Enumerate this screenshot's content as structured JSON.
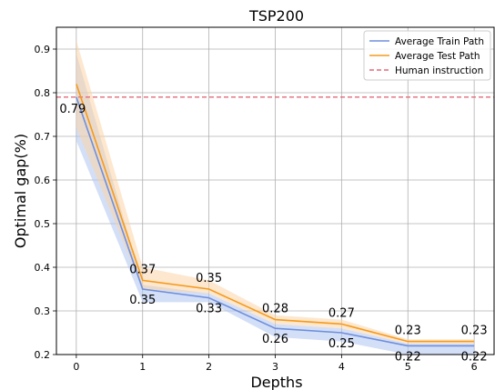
{
  "chart_data": {
    "type": "line",
    "title": "TSP200",
    "xlabel": "Depths",
    "ylabel": "Optimal gap(%)",
    "x": [
      0,
      1,
      2,
      3,
      4,
      5,
      6
    ],
    "x_ticks": [
      "0",
      "1",
      "2",
      "3",
      "4",
      "5",
      "6"
    ],
    "y_ticks": [
      "0.2",
      "0.3",
      "0.4",
      "0.5",
      "0.6",
      "0.7",
      "0.8",
      "0.9"
    ],
    "xlim": [
      -0.3,
      6.3
    ],
    "ylim": [
      0.2,
      0.95
    ],
    "grid": true,
    "legend_position": "top-right",
    "series": [
      {
        "name": "Average Train Path",
        "color": "#6f8fdc",
        "band_color": "#aec4f0",
        "values": [
          0.79,
          0.35,
          0.33,
          0.26,
          0.25,
          0.22,
          0.22
        ],
        "lower": [
          0.69,
          0.32,
          0.32,
          0.24,
          0.23,
          0.2,
          0.2
        ],
        "upper": [
          0.89,
          0.36,
          0.34,
          0.27,
          0.26,
          0.225,
          0.225
        ],
        "labels": [
          "0.79",
          "0.35",
          "0.33",
          "0.26",
          "0.25",
          "0.22",
          "0.22"
        ]
      },
      {
        "name": "Average Test Path",
        "color": "#f59a1b",
        "band_color": "#fbd3a6",
        "values": [
          0.82,
          0.37,
          0.35,
          0.28,
          0.27,
          0.23,
          0.23
        ],
        "lower": [
          0.72,
          0.35,
          0.34,
          0.27,
          0.26,
          0.225,
          0.225
        ],
        "upper": [
          0.92,
          0.4,
          0.37,
          0.29,
          0.28,
          0.235,
          0.235
        ],
        "labels": [
          "",
          "0.37",
          "0.35",
          "0.28",
          "0.27",
          "0.23",
          "0.23"
        ]
      }
    ],
    "reference_line": {
      "name": "Human instruction",
      "value": 0.79,
      "color": "#e26a7a",
      "style": "dashed"
    }
  }
}
